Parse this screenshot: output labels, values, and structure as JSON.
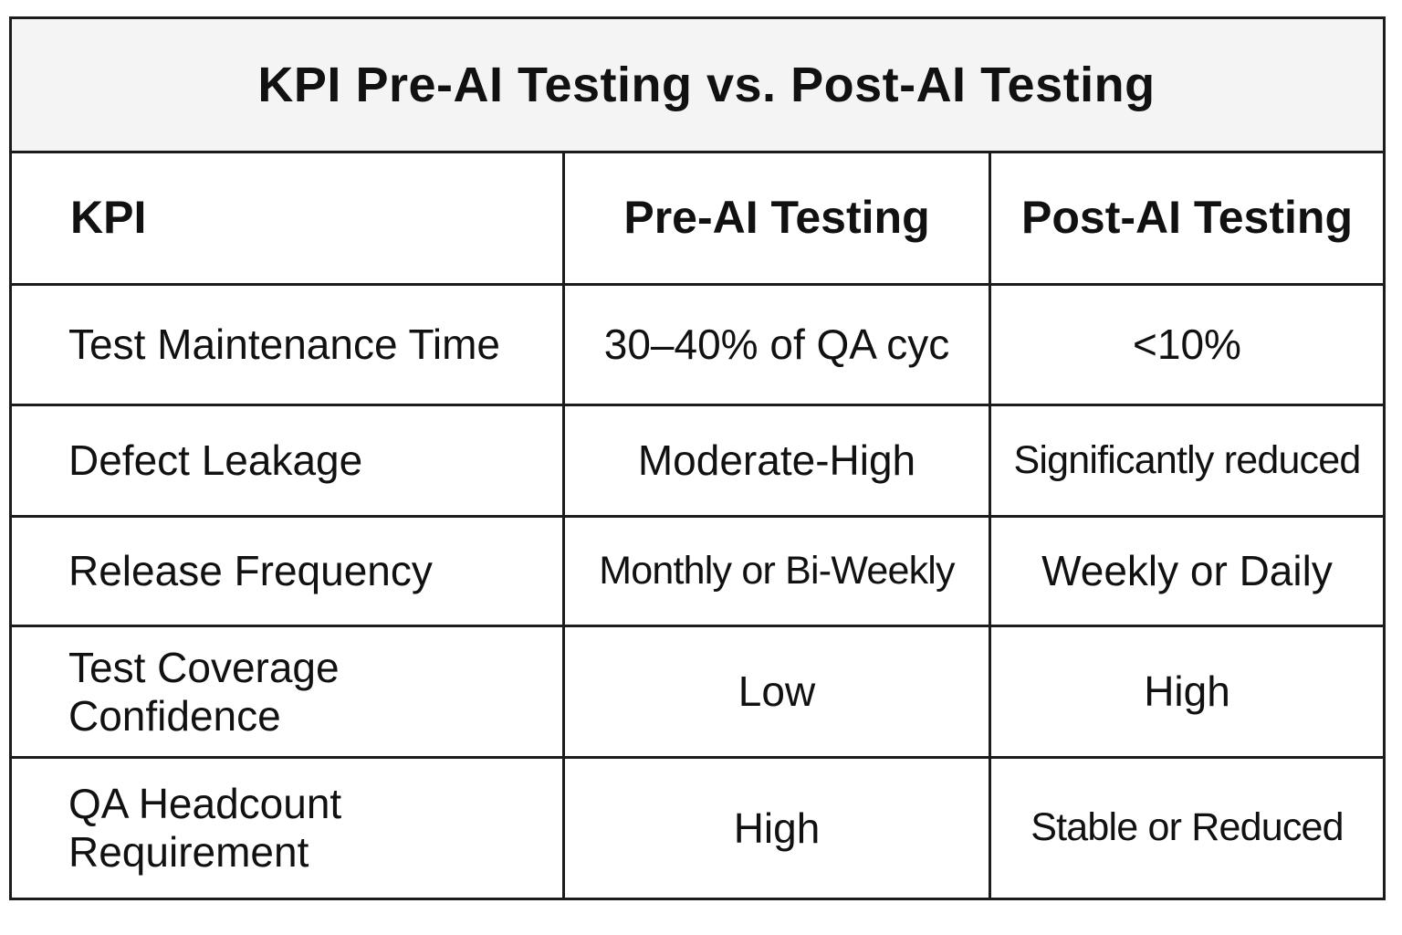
{
  "title": "KPI Pre-AI Testing vs. Post-AI Testing",
  "columns": [
    "KPI",
    "Pre-AI Testing",
    "Post-AI Testing"
  ],
  "rows": [
    {
      "kpi": "Test Maintenance Time",
      "pre": "30–40% of QA cyc",
      "post": "<10%"
    },
    {
      "kpi": "Defect Leakage",
      "pre": "Moderate-High",
      "post": "Significantly reduced"
    },
    {
      "kpi": "Release Frequency",
      "pre": "Monthly or Bi-Weekly",
      "post": "Weekly or Daily"
    },
    {
      "kpi": "Test Coverage Confidence",
      "pre": "Low",
      "post": "High"
    },
    {
      "kpi": "QA Headcount Requirement",
      "pre": "High",
      "post": "Stable or Reduced"
    }
  ]
}
